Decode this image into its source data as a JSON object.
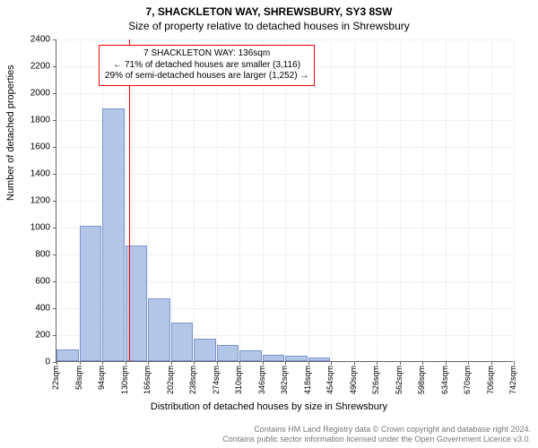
{
  "header": {
    "title": "7, SHACKLETON WAY, SHREWSBURY, SY3 8SW",
    "subtitle": "Size of property relative to detached houses in Shrewsbury"
  },
  "chart": {
    "type": "histogram",
    "ylabel": "Number of detached properties",
    "xlabel": "Distribution of detached houses by size in Shrewsbury",
    "ylim": [
      0,
      2400
    ],
    "ytick_step": 200,
    "ytick_labels": [
      "0",
      "200",
      "400",
      "600",
      "800",
      "1000",
      "1200",
      "1400",
      "1600",
      "1800",
      "2000",
      "2200",
      "2400"
    ],
    "xlim": [
      22,
      742
    ],
    "xtick_step": 36,
    "xtick_labels": [
      "22sqm",
      "58sqm",
      "94sqm",
      "130sqm",
      "166sqm",
      "202sqm",
      "238sqm",
      "274sqm",
      "310sqm",
      "346sqm",
      "382sqm",
      "418sqm",
      "454sqm",
      "490sqm",
      "526sqm",
      "562sqm",
      "598sqm",
      "634sqm",
      "670sqm",
      "706sqm",
      "742sqm"
    ],
    "bar_values": [
      90,
      1010,
      1880,
      860,
      470,
      290,
      170,
      120,
      80,
      50,
      40,
      30,
      0,
      0,
      0,
      0,
      0,
      0,
      0,
      0
    ],
    "bar_color": "#b4c6e7",
    "bar_border_color": "#7b93c9",
    "grid_color": "#eef1f6",
    "background_color": "#ffffff",
    "reference_line": {
      "x": 136,
      "color": "#ff0000"
    },
    "annotation": {
      "line1": "7 SHACKLETON WAY: 136sqm",
      "line2": "← 71% of detached houses are smaller (3,116)",
      "line3": "29% of semi-detached houses are larger (1,252) →",
      "border_color": "#ff0000"
    }
  },
  "footer": {
    "line1": "Contains HM Land Registry data © Crown copyright and database right 2024.",
    "line2": "Contains public sector information licensed under the Open Government Licence v3.0."
  }
}
